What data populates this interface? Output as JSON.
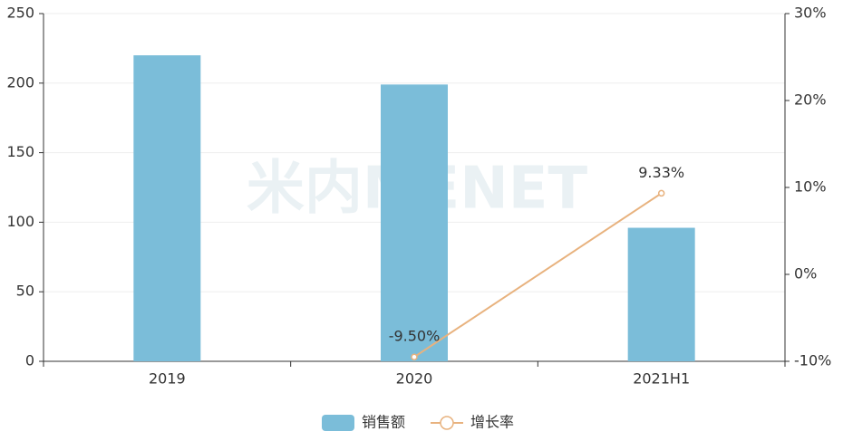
{
  "chart_data": {
    "type": "bar",
    "watermark": "米内MENET",
    "categories": [
      "2019",
      "2020",
      "2021H1"
    ],
    "series": [
      {
        "name": "销售额",
        "type": "bar",
        "color": "#7bbdd9",
        "values": [
          220,
          199,
          96
        ]
      },
      {
        "name": "增长率",
        "type": "line",
        "axis": "y2",
        "color": "#e8b27e",
        "values": [
          null,
          -9.5,
          9.33
        ],
        "value_labels": [
          null,
          "-9.50%",
          "9.33%"
        ]
      }
    ],
    "ylim": [
      0,
      250
    ],
    "yticks": [
      0,
      50,
      100,
      150,
      200,
      250
    ],
    "y2lim": [
      -10,
      30
    ],
    "y2ticks": [
      {
        "value": -10,
        "label": "-10%"
      },
      {
        "value": 0,
        "label": "0%"
      },
      {
        "value": 10,
        "label": "10%"
      },
      {
        "value": 20,
        "label": "20%"
      },
      {
        "value": 30,
        "label": "30%"
      }
    ],
    "grid": true,
    "legend": "bottom"
  }
}
